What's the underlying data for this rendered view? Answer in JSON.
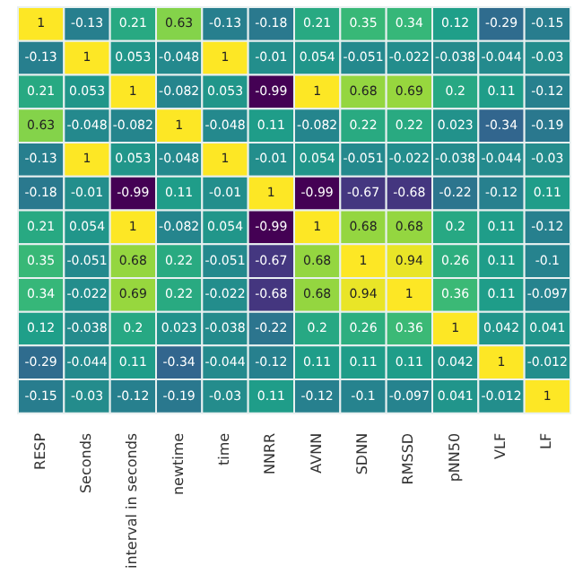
{
  "chart_data": {
    "type": "heatmap",
    "categories": [
      "RESP",
      "Seconds",
      "interval in seconds",
      "newtime",
      "time",
      "NNRR",
      "AVNN",
      "SDNN",
      "RMSSD",
      "pNN50",
      "VLF",
      "LF"
    ],
    "y_categories": [
      null,
      null,
      null,
      null,
      null,
      null,
      null,
      null,
      null,
      null,
      null,
      null
    ],
    "cells": [
      [
        1,
        -0.13,
        0.21,
        0.63,
        -0.13,
        -0.18,
        0.21,
        0.35,
        0.34,
        0.12,
        -0.29,
        -0.15
      ],
      [
        -0.13,
        1,
        0.053,
        -0.048,
        1,
        -0.01,
        0.054,
        -0.051,
        -0.022,
        -0.038,
        -0.044,
        -0.03
      ],
      [
        0.21,
        0.053,
        1,
        -0.082,
        0.053,
        -0.99,
        1,
        0.68,
        0.69,
        0.2,
        0.11,
        -0.12
      ],
      [
        0.63,
        -0.048,
        -0.082,
        1,
        -0.048,
        0.11,
        -0.082,
        0.22,
        0.22,
        0.023,
        -0.34,
        -0.19
      ],
      [
        -0.13,
        1,
        0.053,
        -0.048,
        1,
        -0.01,
        0.054,
        -0.051,
        -0.022,
        -0.038,
        -0.044,
        -0.03
      ],
      [
        -0.18,
        -0.01,
        -0.99,
        0.11,
        -0.01,
        1,
        -0.99,
        -0.67,
        -0.68,
        -0.22,
        -0.12,
        0.11
      ],
      [
        0.21,
        0.054,
        1,
        -0.082,
        0.054,
        -0.99,
        1,
        0.68,
        0.68,
        0.2,
        0.11,
        -0.12
      ],
      [
        0.35,
        -0.051,
        0.68,
        0.22,
        -0.051,
        -0.67,
        0.68,
        1,
        0.94,
        0.26,
        0.11,
        -0.1
      ],
      [
        0.34,
        -0.022,
        0.69,
        0.22,
        -0.022,
        -0.68,
        0.68,
        0.94,
        1,
        0.36,
        0.11,
        -0.097
      ],
      [
        0.12,
        -0.038,
        0.2,
        0.023,
        -0.038,
        -0.22,
        0.2,
        0.26,
        0.36,
        1,
        0.042,
        0.041
      ],
      [
        -0.29,
        -0.044,
        0.11,
        -0.34,
        -0.044,
        -0.12,
        0.11,
        0.11,
        0.11,
        0.042,
        1,
        -0.012
      ],
      [
        -0.15,
        -0.03,
        -0.12,
        -0.19,
        -0.03,
        0.11,
        -0.12,
        -0.1,
        -0.097,
        0.041,
        -0.012,
        1
      ]
    ],
    "data_labels": true,
    "tick_labels": "x"
  }
}
